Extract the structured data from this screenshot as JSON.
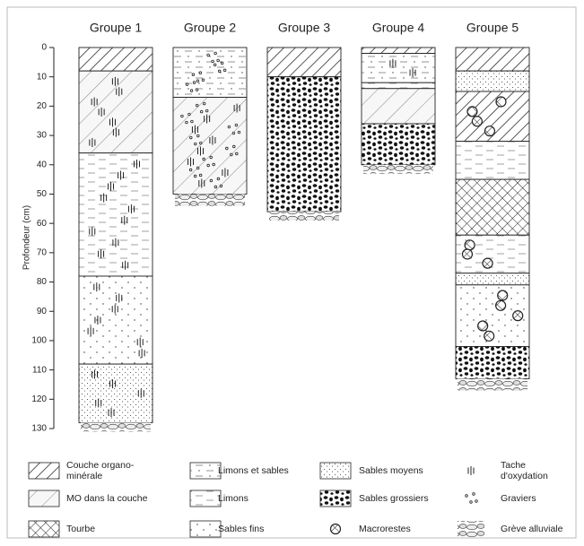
{
  "chart_data": {
    "type": "stratigraphic-columns",
    "ylabel": "Profondeur (cm)",
    "ylim": [
      0,
      130
    ],
    "yticks": [
      0,
      10,
      20,
      30,
      40,
      50,
      60,
      70,
      80,
      90,
      100,
      110,
      120,
      130
    ],
    "legend": [
      "Couche organo-minérale",
      "MO dans la couche",
      "Tourbe",
      "Limons et sables",
      "Limons",
      "Sables fins",
      "Sables moyens",
      "Sables grossiers",
      "Macrorestes",
      "Tache d'oxydation",
      "Graviers",
      "Grève alluviale"
    ],
    "groups": [
      {
        "name": "Groupe 1",
        "layers": [
          {
            "top": 0,
            "bottom": 8,
            "facies": "Couche organo-minérale"
          },
          {
            "top": 8,
            "bottom": 36,
            "facies": "MO dans la couche",
            "marks": [
              "Tache d'oxydation"
            ]
          },
          {
            "top": 36,
            "bottom": 78,
            "facies": "Limons",
            "marks": [
              "Tache d'oxydation"
            ]
          },
          {
            "top": 78,
            "bottom": 108,
            "facies": "Sables fins",
            "marks": [
              "Tache d'oxydation"
            ]
          },
          {
            "top": 108,
            "bottom": 128,
            "facies": "Sables moyens",
            "marks": [
              "Tache d'oxydation"
            ]
          },
          {
            "top": 128,
            "bottom": 131,
            "facies": "Grève alluviale"
          }
        ]
      },
      {
        "name": "Groupe 2",
        "layers": [
          {
            "top": 0,
            "bottom": 17,
            "facies": "Limons et sables",
            "marks": [
              "Graviers"
            ]
          },
          {
            "top": 17,
            "bottom": 50,
            "facies": "MO dans la couche",
            "marks": [
              "Tache d'oxydation",
              "Graviers"
            ]
          },
          {
            "top": 50,
            "bottom": 54,
            "facies": "Grève alluviale"
          }
        ]
      },
      {
        "name": "Groupe 3",
        "layers": [
          {
            "top": 0,
            "bottom": 10,
            "facies": "Couche organo-minérale"
          },
          {
            "top": 10,
            "bottom": 56,
            "facies": "Sables grossiers"
          },
          {
            "top": 56,
            "bottom": 59,
            "facies": "Grève alluviale"
          }
        ]
      },
      {
        "name": "Groupe 4",
        "layers": [
          {
            "top": 0,
            "bottom": 2,
            "facies": "Couche organo-minérale"
          },
          {
            "top": 2,
            "bottom": 12,
            "facies": "Limons et sables",
            "marks": [
              "Tache d'oxydation"
            ]
          },
          {
            "top": 12,
            "bottom": 14,
            "facies": "Limons"
          },
          {
            "top": 14,
            "bottom": 26,
            "facies": "MO dans la couche"
          },
          {
            "top": 26,
            "bottom": 40,
            "facies": "Sables grossiers"
          },
          {
            "top": 40,
            "bottom": 43,
            "facies": "Grève alluviale"
          }
        ]
      },
      {
        "name": "Groupe 5",
        "layers": [
          {
            "top": 0,
            "bottom": 8,
            "facies": "Couche organo-minérale"
          },
          {
            "top": 8,
            "bottom": 15,
            "facies": "Sables moyens"
          },
          {
            "top": 15,
            "bottom": 32,
            "facies": "Couche organo-minérale",
            "marks": [
              "Macrorestes"
            ]
          },
          {
            "top": 32,
            "bottom": 45,
            "facies": "Limons"
          },
          {
            "top": 45,
            "bottom": 64,
            "facies": "Tourbe"
          },
          {
            "top": 64,
            "bottom": 77,
            "facies": "Limons",
            "marks": [
              "Macrorestes"
            ]
          },
          {
            "top": 77,
            "bottom": 81,
            "facies": "Sables moyens"
          },
          {
            "top": 81,
            "bottom": 102,
            "facies": "Sables fins",
            "marks": [
              "Macrorestes"
            ]
          },
          {
            "top": 102,
            "bottom": 113,
            "facies": "Sables grossiers"
          },
          {
            "top": 113,
            "bottom": 117,
            "facies": "Grève alluviale"
          }
        ]
      }
    ]
  }
}
